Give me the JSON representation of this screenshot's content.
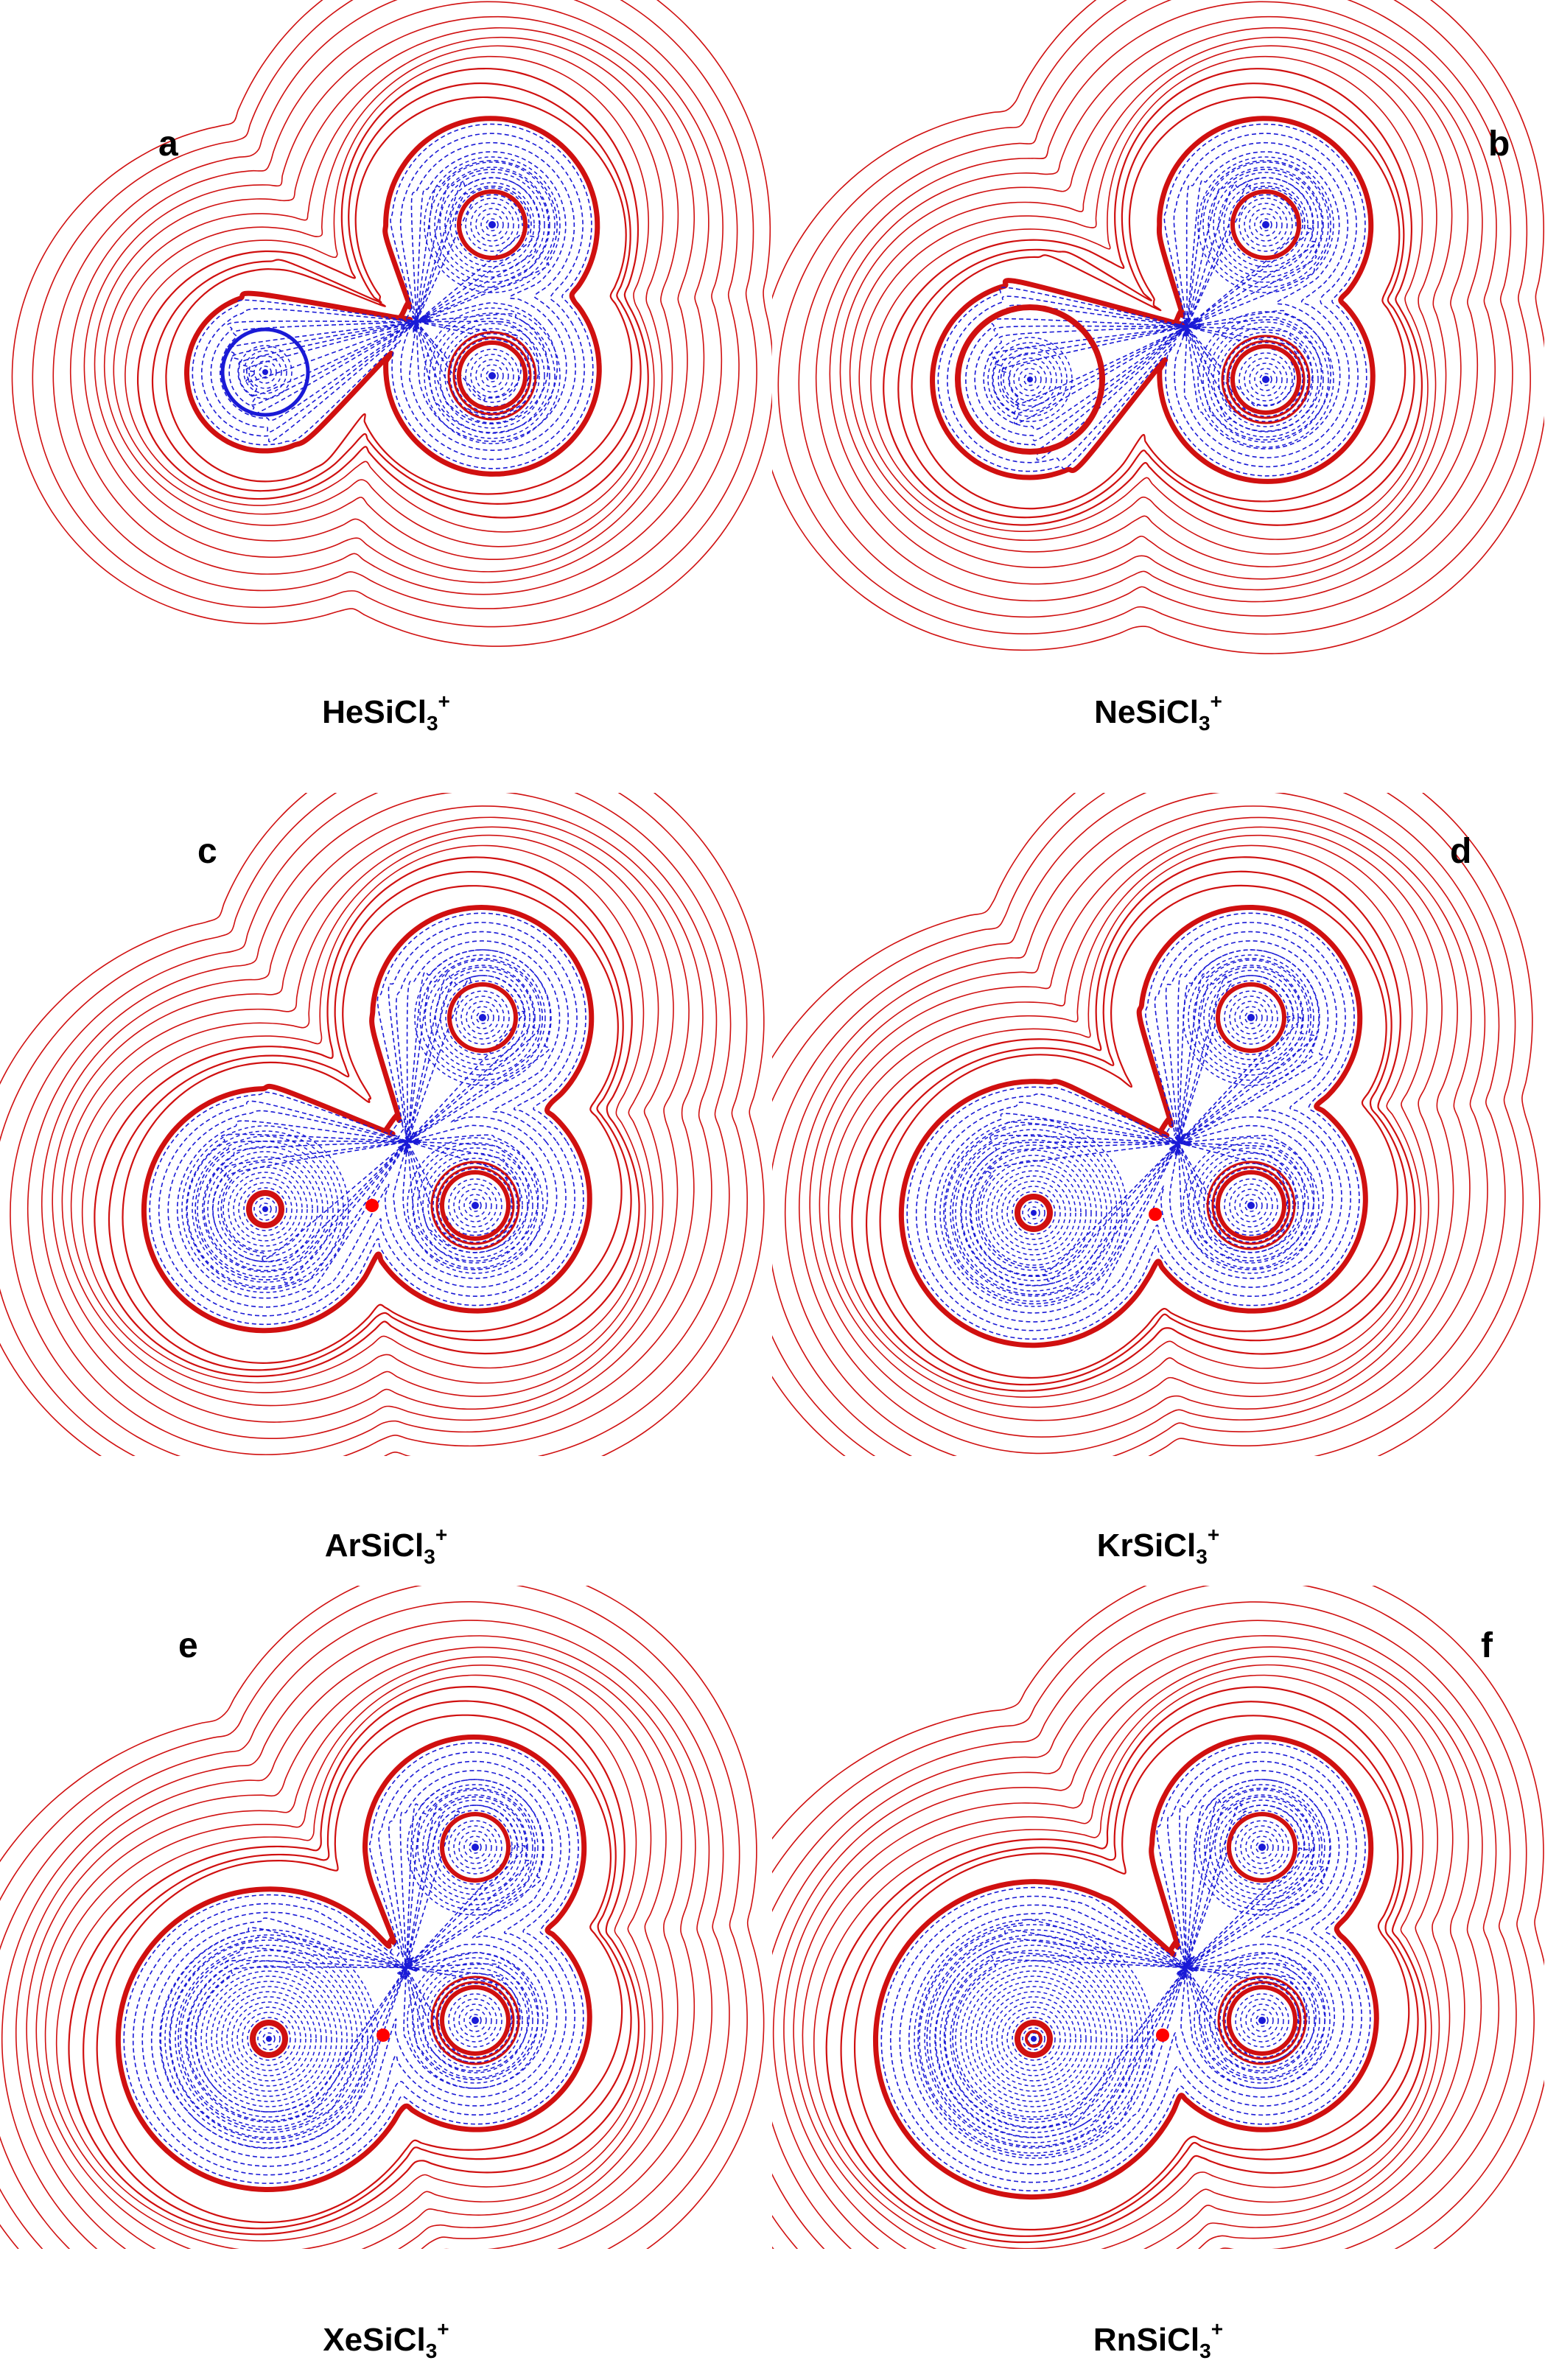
{
  "colors": {
    "positive": "#d01010",
    "negative": "#1a1ad6",
    "bcp": "#ff0000"
  },
  "panels": [
    {
      "letter": "a",
      "species": "HeSiCl",
      "sub": "3",
      "sup": "+"
    },
    {
      "letter": "b",
      "species": "NeSiCl",
      "sub": "3",
      "sup": "+"
    },
    {
      "letter": "c",
      "species": "ArSiCl",
      "sub": "3",
      "sup": "+"
    },
    {
      "letter": "d",
      "species": "KrSiCl",
      "sub": "3",
      "sup": "+"
    },
    {
      "letter": "e",
      "species": "XeSiCl",
      "sub": "3",
      "sup": "+"
    },
    {
      "letter": "f",
      "species": "RnSiCl",
      "sub": "3",
      "sup": "+"
    }
  ]
}
